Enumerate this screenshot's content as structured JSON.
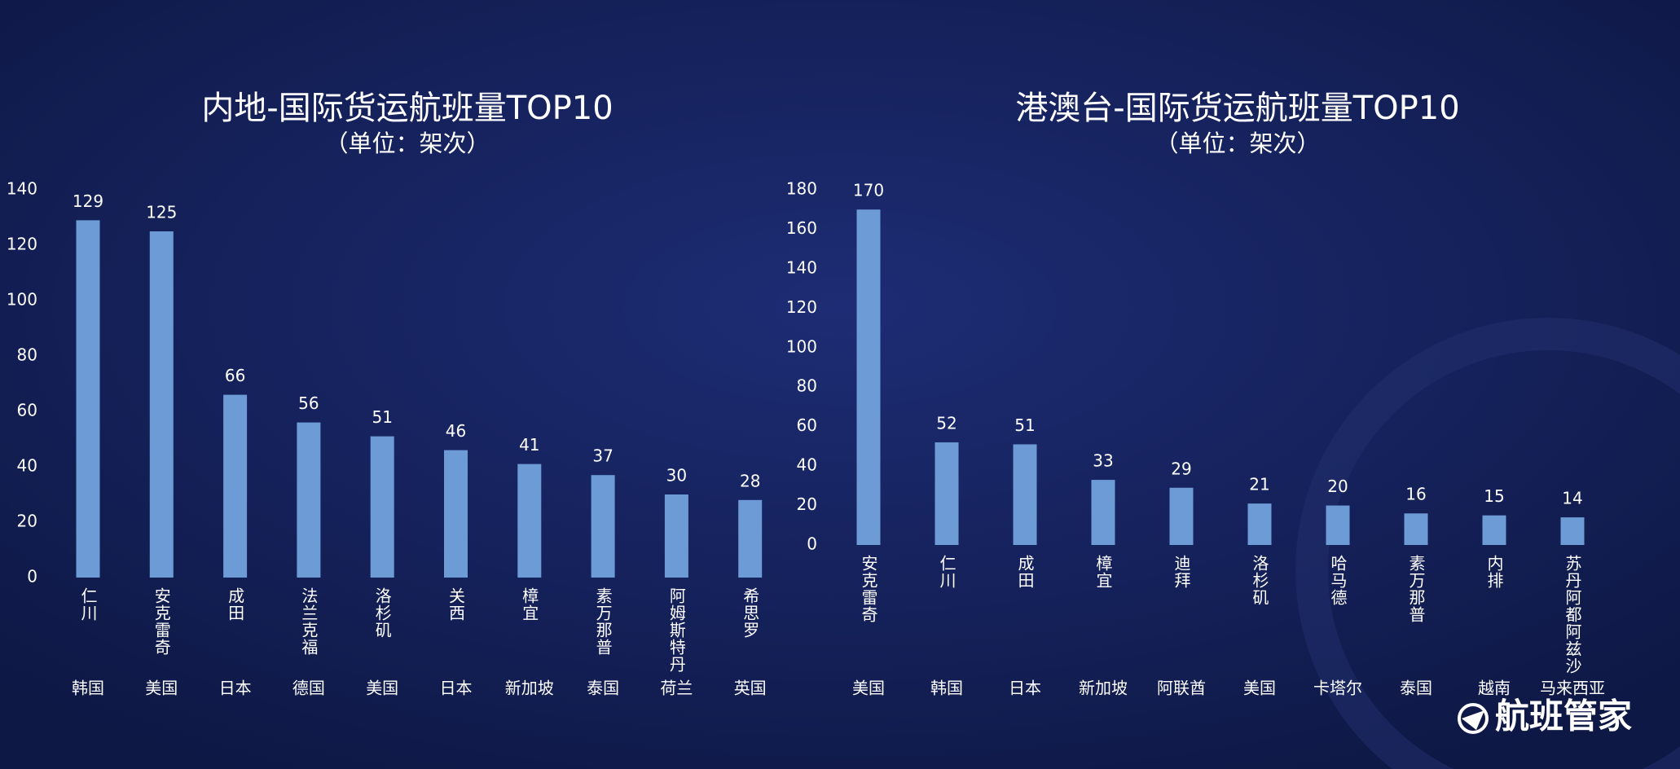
{
  "chart_data": [
    {
      "type": "bar",
      "title": "内地-国际货运航班量TOP10",
      "subtitle": "（单位：架次）",
      "categories": [
        "仁川",
        "安克雷奇",
        "成田",
        "法兰克福",
        "洛杉矶",
        "关西",
        "樟宜",
        "素万那普",
        "阿姆斯特丹",
        "希思罗"
      ],
      "countries": [
        "韩国",
        "美国",
        "日本",
        "德国",
        "美国",
        "日本",
        "新加坡",
        "泰国",
        "荷兰",
        "英国"
      ],
      "values": [
        129,
        125,
        66,
        56,
        51,
        46,
        41,
        37,
        30,
        28
      ],
      "color": "#6c9bd6",
      "ylim": [
        0,
        140
      ],
      "yticks": [
        0,
        20,
        40,
        60,
        80,
        100,
        120,
        140
      ],
      "grid": false
    },
    {
      "type": "bar",
      "title": "港澳台-国际货运航班量TOP10",
      "subtitle": "（单位：架次）",
      "categories": [
        "安克雷奇",
        "仁川",
        "成田",
        "樟宜",
        "迪拜",
        "洛杉矶",
        "哈马德",
        "素万那普",
        "内排",
        "苏丹阿都阿兹沙"
      ],
      "countries": [
        "美国",
        "韩国",
        "日本",
        "新加坡",
        "阿联酋",
        "美国",
        "卡塔尔",
        "泰国",
        "越南",
        "马来西亚"
      ],
      "values": [
        170,
        52,
        51,
        33,
        29,
        21,
        20,
        16,
        15,
        14
      ],
      "color": "#6c9bd6",
      "ylim": [
        0,
        180
      ],
      "yticks": [
        0,
        20,
        40,
        60,
        80,
        100,
        120,
        140,
        160,
        180
      ],
      "grid": false
    }
  ],
  "brand": "航班管家"
}
